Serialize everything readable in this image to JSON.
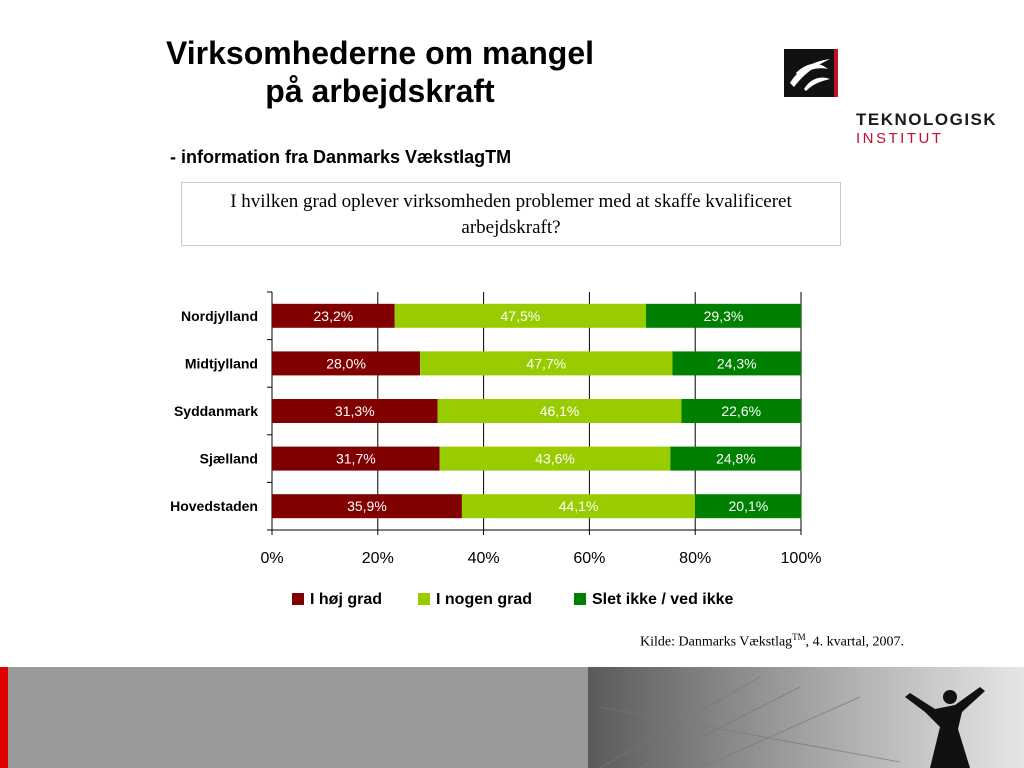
{
  "slide": {
    "title_line1": "Virksomhederne om mangel",
    "title_line2": "på arbejdskraft",
    "subtitle": "- information fra Danmarks VækstlagTM",
    "question": "I hvilken grad oplever virksomheden problemer med at skaffe kvalificeret arbejdskraft?",
    "source_prefix": "Kilde: Danmarks Vækstlag",
    "source_tm": "TM",
    "source_suffix": ", 4. kvartal, 2007."
  },
  "logo": {
    "name": "TEKNOLOGISK",
    "sub": "INSTITUT"
  },
  "chart_data": {
    "type": "bar",
    "orientation": "horizontal",
    "stacked": "percent",
    "categories": [
      "Nordjylland",
      "Midtjylland",
      "Syddanmark",
      "Sjælland",
      "Hovedstaden"
    ],
    "series": [
      {
        "name": "I høj grad",
        "color": "#800000",
        "values": [
          23.2,
          28.0,
          31.3,
          31.7,
          35.9
        ],
        "labels": [
          "23,2%",
          "28,0%",
          "31,3%",
          "31,7%",
          "35,9%"
        ]
      },
      {
        "name": "I nogen grad",
        "color": "#99cc00",
        "values": [
          47.5,
          47.7,
          46.1,
          43.6,
          44.1
        ],
        "labels": [
          "47,5%",
          "47,7%",
          "46,1%",
          "43,6%",
          "44,1%"
        ]
      },
      {
        "name": "Slet ikke / ved ikke",
        "color": "#008000",
        "values": [
          29.3,
          24.3,
          22.6,
          24.8,
          20.1
        ],
        "labels": [
          "29,3%",
          "24,3%",
          "22,6%",
          "24,8%",
          "20,1%"
        ]
      }
    ],
    "xlim": [
      0,
      100
    ],
    "xticks": [
      "0%",
      "20%",
      "40%",
      "60%",
      "80%",
      "100%"
    ],
    "grid": true,
    "legend": "bottom"
  }
}
